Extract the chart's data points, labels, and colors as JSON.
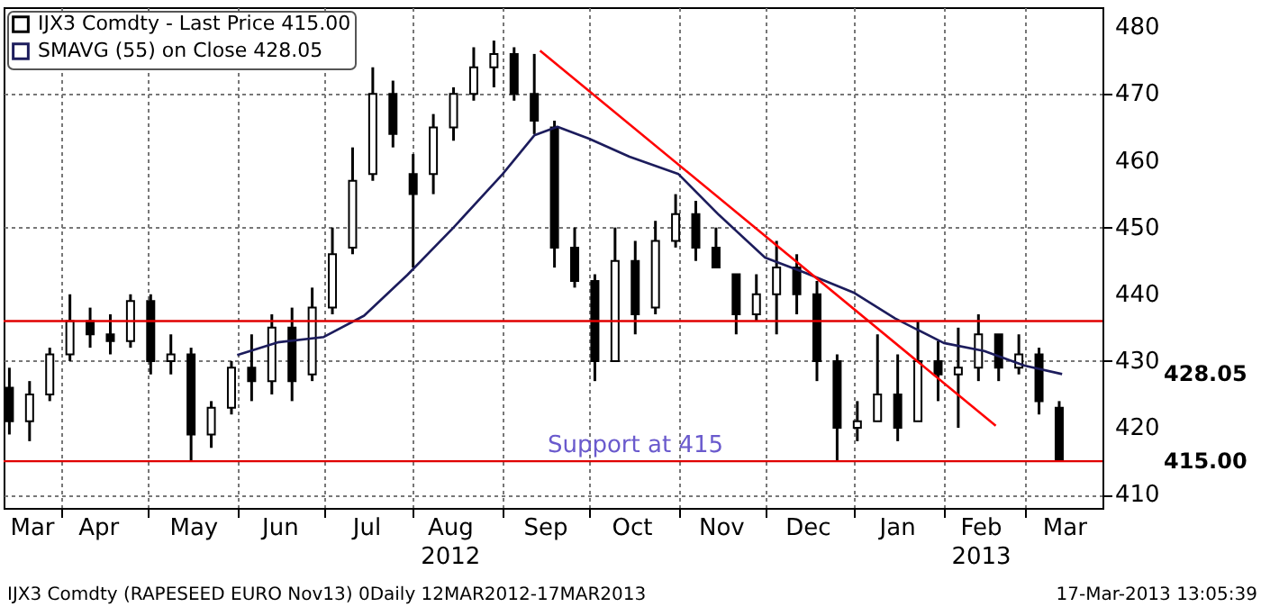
{
  "chart_data": {
    "type": "candlestick",
    "x": [
      "2012-03-14",
      "2012-03-21",
      "2012-03-28",
      "2012-04-04",
      "2012-04-11",
      "2012-04-18",
      "2012-04-25",
      "2012-05-02",
      "2012-05-09",
      "2012-05-16",
      "2012-05-23",
      "2012-05-30",
      "2012-06-06",
      "2012-06-13",
      "2012-06-20",
      "2012-06-27",
      "2012-07-04",
      "2012-07-11",
      "2012-07-18",
      "2012-07-25",
      "2012-08-01",
      "2012-08-08",
      "2012-08-15",
      "2012-08-22",
      "2012-08-29",
      "2012-09-05",
      "2012-09-12",
      "2012-09-19",
      "2012-09-26",
      "2012-10-03",
      "2012-10-10",
      "2012-10-17",
      "2012-10-24",
      "2012-10-31",
      "2012-11-07",
      "2012-11-14",
      "2012-11-21",
      "2012-11-28",
      "2012-12-05",
      "2012-12-12",
      "2012-12-19",
      "2012-12-26",
      "2013-01-02",
      "2013-01-09",
      "2013-01-16",
      "2013-01-23",
      "2013-01-30",
      "2013-02-06",
      "2013-02-13",
      "2013-02-20",
      "2013-02-27",
      "2013-03-06",
      "2013-03-13"
    ],
    "series": [
      {
        "name": "IJX3 Comdty - Last Price 415.00",
        "type": "candlestick",
        "color": "#000000",
        "ohlc": [
          [
            426,
            429,
            419,
            421
          ],
          [
            421,
            427,
            418,
            425
          ],
          [
            425,
            432,
            424,
            431
          ],
          [
            431,
            440,
            430,
            436
          ],
          [
            436,
            438,
            432,
            434
          ],
          [
            434,
            437,
            431,
            433
          ],
          [
            433,
            440,
            432,
            439
          ],
          [
            439,
            440,
            428,
            430
          ],
          [
            430,
            434,
            428,
            431
          ],
          [
            431,
            432,
            415,
            419
          ],
          [
            419,
            424,
            417,
            423
          ],
          [
            423,
            430,
            422,
            429
          ],
          [
            429,
            434,
            424,
            427
          ],
          [
            427,
            437,
            425,
            435
          ],
          [
            435,
            438,
            424,
            427
          ],
          [
            428,
            441,
            427,
            438
          ],
          [
            438,
            450,
            437,
            446
          ],
          [
            447,
            462,
            446,
            457
          ],
          [
            458,
            474,
            457,
            470
          ],
          [
            470,
            472,
            462,
            464
          ],
          [
            458,
            461,
            444,
            455
          ],
          [
            458,
            467,
            455,
            465
          ],
          [
            465,
            471,
            463,
            470
          ],
          [
            470,
            477,
            469,
            474
          ],
          [
            474,
            478,
            471,
            476
          ],
          [
            476,
            477,
            469,
            470
          ],
          [
            470,
            476,
            464,
            466
          ],
          [
            465,
            466,
            444,
            447
          ],
          [
            447,
            450,
            441,
            442
          ],
          [
            442,
            443,
            427,
            430
          ],
          [
            430,
            450,
            430,
            445
          ],
          [
            445,
            448,
            434,
            437
          ],
          [
            438,
            451,
            437,
            448
          ],
          [
            448,
            455,
            447,
            452
          ],
          [
            452,
            454,
            445,
            447
          ],
          [
            447,
            450,
            444,
            444
          ],
          [
            443,
            443,
            434,
            437
          ],
          [
            437,
            443,
            436,
            440
          ],
          [
            440,
            448,
            434,
            444
          ],
          [
            444,
            446,
            437,
            440
          ],
          [
            440,
            442,
            427,
            430
          ],
          [
            430,
            431,
            415,
            420
          ],
          [
            420,
            424,
            418,
            421
          ],
          [
            421,
            434,
            421,
            425
          ],
          [
            425,
            431,
            418,
            420
          ],
          [
            421,
            436,
            421,
            430
          ],
          [
            430,
            433,
            424,
            428
          ],
          [
            428,
            435,
            420,
            429
          ],
          [
            429,
            437,
            427,
            434
          ],
          [
            434,
            434,
            427,
            429
          ],
          [
            429,
            434,
            428,
            431
          ],
          [
            431,
            432,
            422,
            424
          ],
          [
            423,
            424,
            415,
            415
          ]
        ]
      },
      {
        "name": "SMAVG (55) on Close 428.05",
        "type": "line",
        "color": "#1c1c5c",
        "x": [
          "2012-06-01",
          "2012-06-15",
          "2012-07-01",
          "2012-07-15",
          "2012-07-30",
          "2012-08-15",
          "2012-09-01",
          "2012-09-12",
          "2012-09-20",
          "2012-10-01",
          "2012-10-15",
          "2012-11-01",
          "2012-11-15",
          "2012-12-01",
          "2012-12-15",
          "2013-01-01",
          "2013-01-15",
          "2013-02-01",
          "2013-02-15",
          "2013-03-01",
          "2013-03-14"
        ],
        "values": [
          430.9,
          432.8,
          433.6,
          436.8,
          442.9,
          450.0,
          458.0,
          463.8,
          465.1,
          463.3,
          460.6,
          458.0,
          451.9,
          445.5,
          443.2,
          440.2,
          436.4,
          432.7,
          431.5,
          429.3,
          428.05
        ]
      },
      {
        "type": "line",
        "color": "#ff0000",
        "x": [
          "2012-09-14",
          "2013-02-19"
        ],
        "values": [
          476.5,
          420.3
        ]
      }
    ],
    "xlim": [
      "2012-03-12",
      "2013-03-28"
    ],
    "xticks": [
      {
        "value": "2012-03-22",
        "label": "Mar"
      },
      {
        "value": "2012-04-01",
        "label": null
      },
      {
        "value": "2012-04-14",
        "label": "Apr"
      },
      {
        "value": "2012-05-01",
        "label": null
      },
      {
        "value": "2012-05-17",
        "label": "May"
      },
      {
        "value": "2012-06-01",
        "label": null
      },
      {
        "value": "2012-06-16",
        "label": "Jun"
      },
      {
        "value": "2012-07-01",
        "label": null
      },
      {
        "value": "2012-07-16",
        "label": "Jul"
      },
      {
        "value": "2012-08-01",
        "label": null
      },
      {
        "value": "2012-08-14",
        "label": "Aug\n2012"
      },
      {
        "value": "2012-09-01",
        "label": null
      },
      {
        "value": "2012-09-16",
        "label": "Sep"
      },
      {
        "value": "2012-10-01",
        "label": null
      },
      {
        "value": "2012-10-16",
        "label": "Oct"
      },
      {
        "value": "2012-11-01",
        "label": null
      },
      {
        "value": "2012-11-16",
        "label": "Nov"
      },
      {
        "value": "2012-12-01",
        "label": null
      },
      {
        "value": "2012-12-16",
        "label": "Dec"
      },
      {
        "value": "2013-01-01",
        "label": null
      },
      {
        "value": "2013-01-16",
        "label": "Jan"
      },
      {
        "value": "2013-02-01",
        "label": null
      },
      {
        "value": "2013-02-14",
        "label": "Feb\n2013"
      },
      {
        "value": "2013-03-01",
        "label": null
      },
      {
        "value": "2013-03-15",
        "label": "Mar"
      }
    ],
    "ylim": [
      408,
      483
    ],
    "yticks": [
      410,
      420,
      430,
      440,
      450,
      460,
      470,
      480
    ],
    "grid": true,
    "legend": "top left",
    "ref_lines": [
      {
        "axis": "y",
        "value": 415,
        "label": "Support at 415",
        "color": "#e00000"
      },
      {
        "axis": "y",
        "value": 436,
        "color": "#e00000"
      }
    ],
    "annotations": [
      "IJX3 Comdty (RAPESEED  EURO    Nov13) 0Daily 12MAR2012-17MAR2013",
      "17-Mar-2013 13:05:39",
      "428.05",
      "415.00"
    ]
  }
}
